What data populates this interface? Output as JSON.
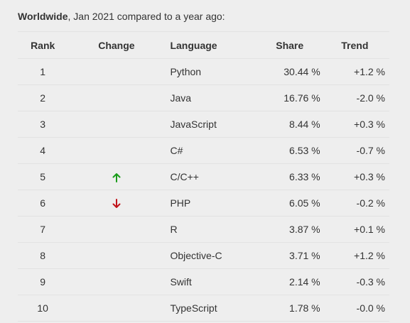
{
  "caption": {
    "bold": "Worldwide",
    "rest": ", Jan 2021 compared to a year ago:"
  },
  "headers": {
    "rank": "Rank",
    "change": "Change",
    "language": "Language",
    "share": "Share",
    "trend": "Trend"
  },
  "colors": {
    "up": "#1a9c1a",
    "down": "#c0131a"
  },
  "rows": [
    {
      "rank": "1",
      "change": "",
      "language": "Python",
      "share": "30.44 %",
      "trend": "+1.2 %"
    },
    {
      "rank": "2",
      "change": "",
      "language": "Java",
      "share": "16.76 %",
      "trend": "-2.0 %"
    },
    {
      "rank": "3",
      "change": "",
      "language": "JavaScript",
      "share": "8.44 %",
      "trend": "+0.3 %"
    },
    {
      "rank": "4",
      "change": "",
      "language": "C#",
      "share": "6.53 %",
      "trend": "-0.7 %"
    },
    {
      "rank": "5",
      "change": "up-arrow-icon",
      "language": "C/C++",
      "share": "6.33 %",
      "trend": "+0.3 %"
    },
    {
      "rank": "6",
      "change": "down-arrow-icon",
      "language": "PHP",
      "share": "6.05 %",
      "trend": "-0.2 %"
    },
    {
      "rank": "7",
      "change": "",
      "language": "R",
      "share": "3.87 %",
      "trend": "+0.1 %"
    },
    {
      "rank": "8",
      "change": "",
      "language": "Objective-C",
      "share": "3.71 %",
      "trend": "+1.2 %"
    },
    {
      "rank": "9",
      "change": "",
      "language": "Swift",
      "share": "2.14 %",
      "trend": "-0.3 %"
    },
    {
      "rank": "10",
      "change": "",
      "language": "TypeScript",
      "share": "1.78 %",
      "trend": "-0.0 %"
    }
  ]
}
